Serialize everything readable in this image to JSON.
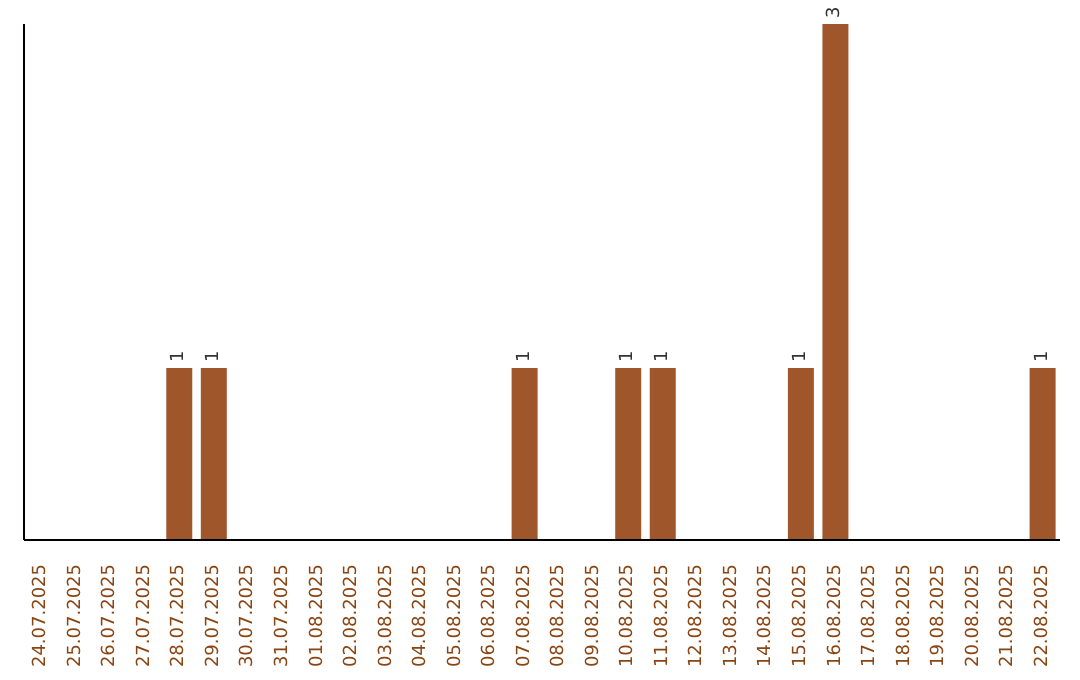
{
  "chart_data": {
    "type": "bar",
    "categories": [
      "24.07.2025",
      "25.07.2025",
      "26.07.2025",
      "27.07.2025",
      "28.07.2025",
      "29.07.2025",
      "30.07.2025",
      "31.07.2025",
      "01.08.2025",
      "02.08.2025",
      "03.08.2025",
      "04.08.2025",
      "05.08.2025",
      "06.08.2025",
      "07.08.2025",
      "08.08.2025",
      "09.08.2025",
      "10.08.2025",
      "11.08.2025",
      "12.08.2025",
      "13.08.2025",
      "14.08.2025",
      "15.08.2025",
      "16.08.2025",
      "17.08.2025",
      "18.08.2025",
      "19.08.2025",
      "20.08.2025",
      "21.08.2025",
      "22.08.2025"
    ],
    "values": [
      0,
      0,
      0,
      0,
      1,
      1,
      0,
      0,
      0,
      0,
      0,
      0,
      0,
      0,
      1,
      0,
      0,
      1,
      1,
      0,
      0,
      0,
      1,
      3,
      0,
      0,
      0,
      0,
      0,
      1
    ],
    "color": "#a0562b",
    "value_labels": [
      null,
      null,
      null,
      null,
      "1",
      "1",
      null,
      null,
      null,
      null,
      null,
      null,
      null,
      null,
      "1",
      null,
      null,
      "1",
      "1",
      null,
      null,
      null,
      "1",
      "3",
      null,
      null,
      null,
      null,
      null,
      "1"
    ],
    "grid": false,
    "legend": false
  }
}
